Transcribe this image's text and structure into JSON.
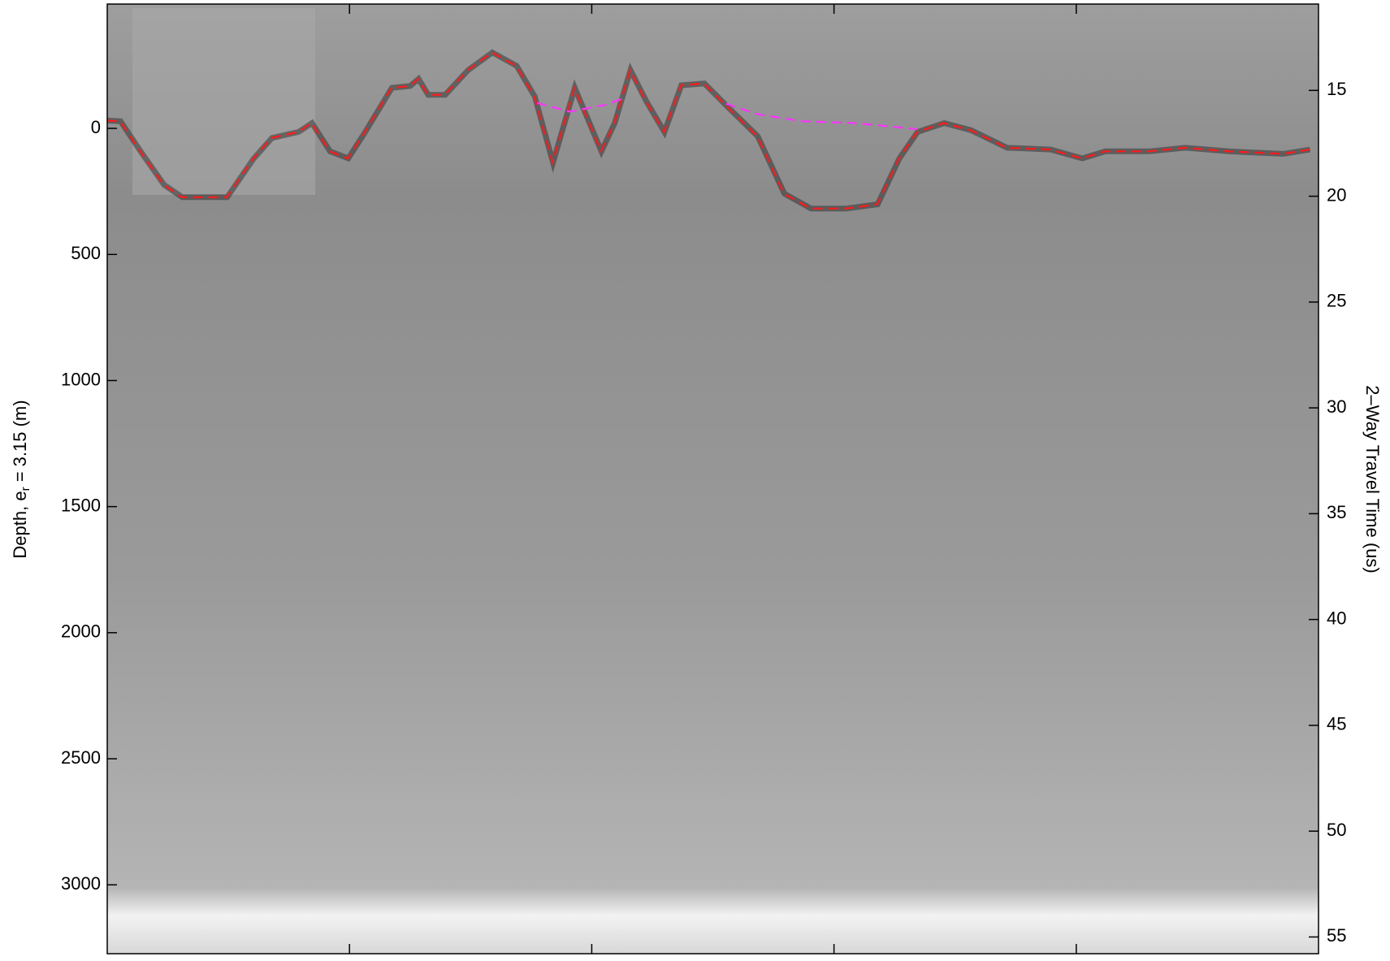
{
  "chart_data": {
    "type": "line",
    "ylabel": [
      "Depth, e",
      "r",
      " = 3.15 (m)"
    ],
    "y2label": "2–Way Travel Time (us)",
    "xlim": [
      0,
      1
    ],
    "xticks": [
      0.2,
      0.4,
      0.6,
      0.8
    ],
    "ylim": [
      -493,
      3273
    ],
    "yinvert": true,
    "yticks": [
      0,
      500,
      1000,
      1500,
      2000,
      2500,
      3000
    ],
    "y2lim": [
      10.92,
      55.79
    ],
    "y2ticks": [
      15,
      20,
      25,
      30,
      35,
      40,
      45,
      50,
      55
    ],
    "series": [
      {
        "color": "#ff1a1a",
        "x": [
          0,
          0.011,
          0.029,
          0.047,
          0.062,
          0.099,
          0.121,
          0.136,
          0.158,
          0.169,
          0.184,
          0.199,
          0.213,
          0.235,
          0.25,
          0.257,
          0.265,
          0.279,
          0.298,
          0.318,
          0.338,
          0.353,
          0.368,
          0.386,
          0.408,
          0.419,
          0.432,
          0.445,
          0.46,
          0.474,
          0.493,
          0.511,
          0.537,
          0.559,
          0.581,
          0.61,
          0.636,
          0.654,
          0.669,
          0.691,
          0.713,
          0.743,
          0.779,
          0.805,
          0.824,
          0.86,
          0.89,
          0.926,
          0.971,
          0.993
        ],
        "values": [
          -31,
          -28,
          101,
          224,
          273,
          273,
          119,
          38,
          14,
          -21,
          91,
          119,
          14,
          -161,
          -168,
          -196,
          -133,
          -133,
          -231,
          -301,
          -248,
          -126,
          136,
          -161,
          91,
          -21,
          -231,
          -108,
          14,
          -171,
          -178,
          -91,
          31,
          259,
          318,
          318,
          301,
          119,
          14,
          -21,
          7,
          77,
          84,
          119,
          91,
          91,
          77,
          91,
          101,
          84
        ]
      },
      {
        "color": "#ff33ff",
        "x": [
          0.355,
          0.382,
          0.412,
          0.426,
          0.5,
          0.511,
          0.537,
          0.574,
          0.618,
          0.669
        ],
        "values": [
          -101,
          -66,
          -94,
          -119,
          null,
          -98,
          -56,
          -28,
          -21,
          3
        ]
      }
    ]
  }
}
